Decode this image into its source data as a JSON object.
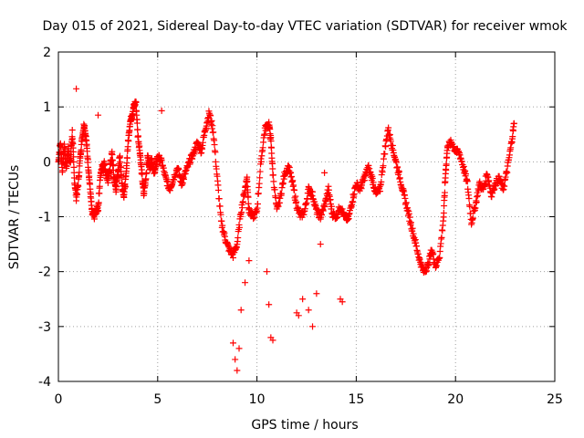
{
  "chart_data": {
    "type": "scatter",
    "title": "Day 015 of 2021, Sidereal Day-to-day VTEC variation (SDTVAR) for receiver wmok",
    "xlabel": "GPS time / hours",
    "ylabel": "SDTVAR / TECUs",
    "xlim": [
      0,
      25
    ],
    "ylim": [
      -4,
      2
    ],
    "xticks": [
      0,
      5,
      10,
      15,
      20,
      25
    ],
    "yticks": [
      -4,
      -3,
      -2,
      -1,
      0,
      1,
      2
    ],
    "grid": true,
    "marker": "+",
    "color": "#ff0000",
    "series": [
      {
        "name": "SDTVAR",
        "keypoints": [
          [
            0.0,
            0.0
          ],
          [
            0.1,
            0.35
          ],
          [
            0.2,
            -0.15
          ],
          [
            0.3,
            0.3
          ],
          [
            0.4,
            -0.1
          ],
          [
            0.5,
            0.25
          ],
          [
            0.6,
            -0.05
          ],
          [
            0.7,
            0.55
          ],
          [
            0.8,
            -0.3
          ],
          [
            0.9,
            -0.65
          ],
          [
            1.0,
            -0.4
          ],
          [
            1.1,
            0.1
          ],
          [
            1.2,
            0.45
          ],
          [
            1.3,
            0.7
          ],
          [
            1.4,
            0.4
          ],
          [
            1.5,
            -0.05
          ],
          [
            1.6,
            -0.5
          ],
          [
            1.7,
            -0.95
          ],
          [
            1.8,
            -1.0
          ],
          [
            1.9,
            -0.9
          ],
          [
            2.0,
            -0.85
          ],
          [
            2.1,
            -0.3
          ],
          [
            2.2,
            -0.1
          ],
          [
            2.3,
            0.0
          ],
          [
            2.4,
            -0.2
          ],
          [
            2.5,
            -0.35
          ],
          [
            2.6,
            -0.1
          ],
          [
            2.7,
            0.15
          ],
          [
            2.8,
            -0.3
          ],
          [
            2.9,
            -0.5
          ],
          [
            3.0,
            -0.2
          ],
          [
            3.1,
            0.1
          ],
          [
            3.2,
            -0.4
          ],
          [
            3.3,
            -0.6
          ],
          [
            3.4,
            -0.3
          ],
          [
            3.5,
            0.3
          ],
          [
            3.6,
            0.7
          ],
          [
            3.7,
            0.85
          ],
          [
            3.8,
            1.0
          ],
          [
            3.9,
            1.1
          ],
          [
            4.0,
            0.5
          ],
          [
            4.1,
            0.2
          ],
          [
            4.2,
            -0.2
          ],
          [
            4.3,
            -0.6
          ],
          [
            4.4,
            -0.3
          ],
          [
            4.5,
            0.1
          ],
          [
            4.6,
            -0.1
          ],
          [
            4.7,
            0.05
          ],
          [
            4.8,
            -0.2
          ],
          [
            4.9,
            -0.1
          ],
          [
            5.0,
            0.1
          ],
          [
            5.2,
            0.0
          ],
          [
            5.4,
            -0.3
          ],
          [
            5.6,
            -0.5
          ],
          [
            5.8,
            -0.3
          ],
          [
            6.0,
            -0.1
          ],
          [
            6.2,
            -0.4
          ],
          [
            6.4,
            -0.2
          ],
          [
            6.6,
            0.0
          ],
          [
            6.8,
            0.15
          ],
          [
            7.0,
            0.35
          ],
          [
            7.2,
            0.2
          ],
          [
            7.4,
            0.6
          ],
          [
            7.6,
            0.9
          ],
          [
            7.8,
            0.55
          ],
          [
            8.0,
            -0.3
          ],
          [
            8.2,
            -1.1
          ],
          [
            8.4,
            -1.4
          ],
          [
            8.6,
            -1.6
          ],
          [
            8.8,
            -1.7
          ],
          [
            9.0,
            -1.5
          ],
          [
            9.2,
            -0.9
          ],
          [
            9.4,
            -0.5
          ],
          [
            9.5,
            -0.3
          ],
          [
            9.6,
            -0.9
          ],
          [
            9.8,
            -1.0
          ],
          [
            10.0,
            -0.9
          ],
          [
            10.2,
            0.0
          ],
          [
            10.4,
            0.6
          ],
          [
            10.6,
            0.7
          ],
          [
            10.7,
            0.4
          ],
          [
            10.8,
            -0.2
          ],
          [
            11.0,
            -0.9
          ],
          [
            11.2,
            -0.6
          ],
          [
            11.4,
            -0.2
          ],
          [
            11.6,
            -0.1
          ],
          [
            11.8,
            -0.4
          ],
          [
            12.0,
            -0.8
          ],
          [
            12.2,
            -1.0
          ],
          [
            12.4,
            -0.9
          ],
          [
            12.6,
            -0.5
          ],
          [
            12.8,
            -0.6
          ],
          [
            13.0,
            -0.9
          ],
          [
            13.2,
            -1.0
          ],
          [
            13.4,
            -0.8
          ],
          [
            13.6,
            -0.5
          ],
          [
            13.8,
            -0.95
          ],
          [
            14.0,
            -1.0
          ],
          [
            14.2,
            -0.8
          ],
          [
            14.4,
            -1.0
          ],
          [
            14.6,
            -1.05
          ],
          [
            14.8,
            -0.7
          ],
          [
            15.0,
            -0.4
          ],
          [
            15.2,
            -0.5
          ],
          [
            15.4,
            -0.3
          ],
          [
            15.6,
            -0.1
          ],
          [
            15.8,
            -0.3
          ],
          [
            16.0,
            -0.6
          ],
          [
            16.2,
            -0.5
          ],
          [
            16.4,
            0.1
          ],
          [
            16.6,
            0.6
          ],
          [
            16.8,
            0.3
          ],
          [
            17.0,
            0.0
          ],
          [
            17.2,
            -0.3
          ],
          [
            17.4,
            -0.6
          ],
          [
            17.6,
            -0.9
          ],
          [
            17.8,
            -1.2
          ],
          [
            18.0,
            -1.5
          ],
          [
            18.2,
            -1.8
          ],
          [
            18.4,
            -2.0
          ],
          [
            18.6,
            -1.9
          ],
          [
            18.8,
            -1.6
          ],
          [
            19.0,
            -1.9
          ],
          [
            19.2,
            -1.7
          ],
          [
            19.4,
            -1.0
          ],
          [
            19.5,
            -0.2
          ],
          [
            19.6,
            0.3
          ],
          [
            19.8,
            0.35
          ],
          [
            20.0,
            0.2
          ],
          [
            20.2,
            0.15
          ],
          [
            20.4,
            -0.1
          ],
          [
            20.6,
            -0.4
          ],
          [
            20.8,
            -1.1
          ],
          [
            21.0,
            -0.8
          ],
          [
            21.2,
            -0.4
          ],
          [
            21.4,
            -0.5
          ],
          [
            21.6,
            -0.2
          ],
          [
            21.8,
            -0.6
          ],
          [
            22.0,
            -0.4
          ],
          [
            22.2,
            -0.3
          ],
          [
            22.4,
            -0.5
          ],
          [
            22.6,
            -0.15
          ],
          [
            22.8,
            0.3
          ],
          [
            22.95,
            0.7
          ]
        ],
        "excursions": [
          [
            0.9,
            1.33
          ],
          [
            2.0,
            0.85
          ],
          [
            5.2,
            0.93
          ],
          [
            8.8,
            -3.3
          ],
          [
            8.9,
            -3.6
          ],
          [
            9.0,
            -3.8
          ],
          [
            9.1,
            -3.4
          ],
          [
            9.2,
            -2.7
          ],
          [
            9.4,
            -2.2
          ],
          [
            9.6,
            -1.8
          ],
          [
            10.5,
            -2.0
          ],
          [
            10.6,
            -2.6
          ],
          [
            10.7,
            -3.2
          ],
          [
            10.8,
            -3.25
          ],
          [
            12.0,
            -2.75
          ],
          [
            12.1,
            -2.8
          ],
          [
            12.3,
            -2.5
          ],
          [
            12.6,
            -2.7
          ],
          [
            12.8,
            -3.0
          ],
          [
            13.0,
            -2.4
          ],
          [
            13.2,
            -1.5
          ],
          [
            13.4,
            -0.2
          ],
          [
            14.2,
            -2.5
          ],
          [
            14.3,
            -2.55
          ]
        ]
      }
    ]
  }
}
